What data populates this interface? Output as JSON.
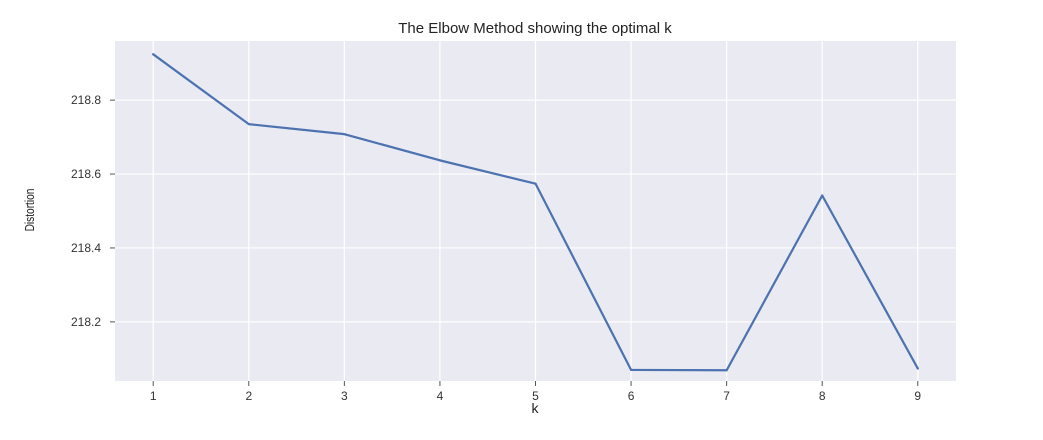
{
  "chart_data": {
    "type": "line",
    "title": "The Elbow Method showing the optimal k",
    "xlabel": "k",
    "ylabel": "Distortion",
    "x": [
      1,
      2,
      3,
      4,
      5,
      6,
      7,
      8,
      9
    ],
    "series": [
      {
        "values": [
          218.924,
          218.735,
          218.708,
          218.637,
          218.574,
          218.07,
          218.069,
          218.542,
          218.074
        ]
      }
    ],
    "xlim": [
      0.6,
      9.4
    ],
    "ylim": [
      218.04,
      218.96
    ],
    "xticks": [
      "1",
      "2",
      "3",
      "4",
      "5",
      "6",
      "7",
      "8",
      "9"
    ],
    "yticks": [
      "218.2",
      "218.4",
      "218.6",
      "218.8"
    ],
    "grid": true,
    "style": {
      "background": "#eaeaf2",
      "grid_color": "#ffffff",
      "line_color": "#4c72b0"
    }
  }
}
